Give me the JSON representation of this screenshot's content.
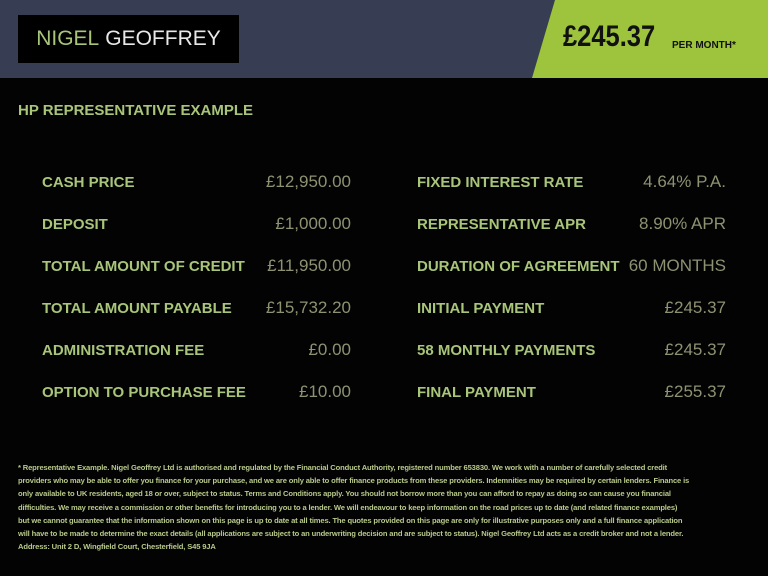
{
  "header": {
    "logo_part1": "NIGEL",
    "logo_part2": "GEOFFREY",
    "monthly_price": "£245.37",
    "per_month": "PER MONTH*",
    "colors": {
      "header_bg": "#373d52",
      "accent": "#9dc43c"
    }
  },
  "title": "HP REPRESENTATIVE EXAMPLE",
  "left": [
    {
      "label": "CASH PRICE",
      "value": "£12,950.00"
    },
    {
      "label": "DEPOSIT",
      "value": "£1,000.00"
    },
    {
      "label": "TOTAL AMOUNT OF CREDIT",
      "value": "£11,950.00"
    },
    {
      "label": "TOTAL AMOUNT PAYABLE",
      "value": "£15,732.20"
    },
    {
      "label": "ADMINISTRATION FEE",
      "value": "£0.00"
    },
    {
      "label": "OPTION TO PURCHASE FEE",
      "value": "£10.00"
    }
  ],
  "right": [
    {
      "label": "FIXED INTEREST RATE",
      "value": "4.64% P.A."
    },
    {
      "label": "REPRESENTATIVE APR",
      "value": "8.90% APR"
    },
    {
      "label": "DURATION OF AGREEMENT",
      "value": "60 MONTHS"
    },
    {
      "label": "INITIAL PAYMENT",
      "value": "£245.37"
    },
    {
      "label": "58 MONTHLY PAYMENTS",
      "value": "£245.37"
    },
    {
      "label": "FINAL PAYMENT",
      "value": "£255.37"
    }
  ],
  "footnote": "* Representative Example. Nigel Geoffrey Ltd is authorised and regulated by the Financial Conduct Authority, registered number 653830. We work with a number of carefully selected credit providers who may be able to offer you finance for your purchase, and we are only able to offer finance products from these providers. Indemnities may be required by certain lenders. Finance is only available to UK residents, aged 18 or over, subject to status. Terms and Conditions apply. You should not borrow more than you can afford to repay as doing so can cause you financial difficulties. We may receive a commission or other benefits for introducing you to a lender. We will endeavour to keep information on the road prices up to date (and related finance examples) but we cannot guarantee that the information shown on this page is up to date at all times. The quotes provided on this page are only for illustrative purposes only and a full finance application will have to be made to determine the exact details (all applications are subject to an underwriting decision and are subject to status). Nigel Geoffrey Ltd acts as a credit broker and not a lender. Address: Unit 2 D, Wingfield Court, Chesterfield, S45 9JA"
}
